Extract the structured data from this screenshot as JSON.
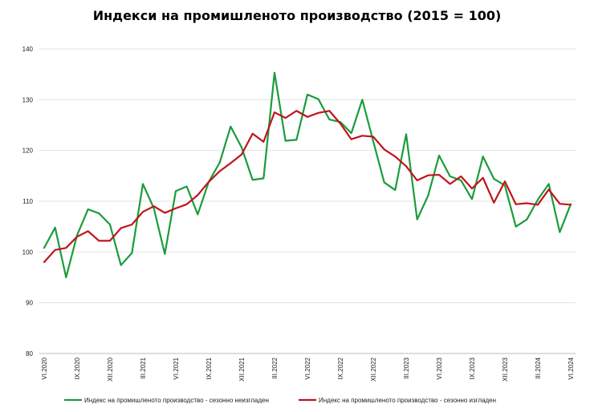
{
  "chart_data": {
    "type": "line",
    "title": "Индекси на промишленото производство (2015 = 100)",
    "xlabel": "",
    "ylabel": "",
    "ylim": [
      80,
      140
    ],
    "yticks": [
      80,
      90,
      100,
      110,
      120,
      130,
      140
    ],
    "grid": true,
    "legend_position": "bottom",
    "x": [
      "VI.2020",
      "VII.2020",
      "VIII.2020",
      "IX.2020",
      "X.2020",
      "XI.2020",
      "XII.2020",
      "I.2021",
      "II.2021",
      "III.2021",
      "IV.2021",
      "V.2021",
      "VI.2021",
      "VII.2021",
      "VIII.2021",
      "IX.2021",
      "X.2021",
      "XI.2021",
      "XII.2021",
      "I.2022",
      "II.2022",
      "III.2022",
      "IV.2022",
      "V.2022",
      "VI.2022",
      "VII.2022",
      "VIII.2022",
      "IX.2022",
      "X.2022",
      "XI.2022",
      "XII.2022",
      "I.2023",
      "II.2023",
      "III.2023",
      "IV.2023",
      "V.2023",
      "VI.2023",
      "VII.2023",
      "VIII.2023",
      "IX.2023",
      "X.2023",
      "XI.2023",
      "XII.2023",
      "I.2024",
      "II.2024",
      "III.2024",
      "IV.2024",
      "V.2024",
      "VI.2024"
    ],
    "xtick_labels": [
      "VI.2020",
      "IX.2020",
      "XII.2020",
      "III.2021",
      "VI.2021",
      "IX.2021",
      "XII.2021",
      "III.2022",
      "VI.2022",
      "IX.2022",
      "XII.2022",
      "III.2023",
      "VI.2023",
      "IX.2023",
      "XII.2023",
      "III.2024",
      "VI.2024"
    ],
    "series": [
      {
        "name": "Индекс на промишленото производство - сезонно  неизгладен",
        "color": "#1a9c3c",
        "values": [
          100.8,
          104.8,
          95.0,
          103.3,
          108.4,
          107.6,
          105.4,
          97.4,
          99.8,
          113.4,
          108.6,
          99.6,
          112.0,
          112.9,
          107.4,
          113.8,
          117.6,
          124.7,
          120.6,
          114.2,
          114.5,
          135.3,
          121.9,
          122.1,
          131.0,
          130.1,
          126.1,
          125.6,
          123.4,
          130.0,
          121.8,
          113.7,
          112.2,
          123.2,
          106.4,
          111.1,
          119.0,
          114.9,
          114.1,
          110.4,
          118.8,
          114.4,
          113.1,
          105.0,
          106.4,
          110.3,
          113.4,
          103.9,
          109.4
        ]
      },
      {
        "name": "Индекс на промишленото производство - сезонно изгладен",
        "color": "#c0141b",
        "values": [
          98.0,
          100.4,
          100.8,
          103.0,
          104.1,
          102.2,
          102.2,
          104.7,
          105.4,
          107.9,
          109.0,
          107.7,
          108.6,
          109.4,
          111.2,
          113.8,
          115.9,
          117.5,
          119.2,
          123.3,
          121.7,
          127.5,
          126.4,
          127.8,
          126.6,
          127.4,
          127.8,
          125.3,
          122.2,
          122.9,
          122.7,
          120.2,
          118.8,
          116.9,
          114.1,
          115.1,
          115.2,
          113.4,
          114.9,
          112.5,
          114.6,
          109.7,
          113.9,
          109.4,
          109.6,
          109.3,
          112.3,
          109.5,
          109.3
        ]
      }
    ]
  }
}
